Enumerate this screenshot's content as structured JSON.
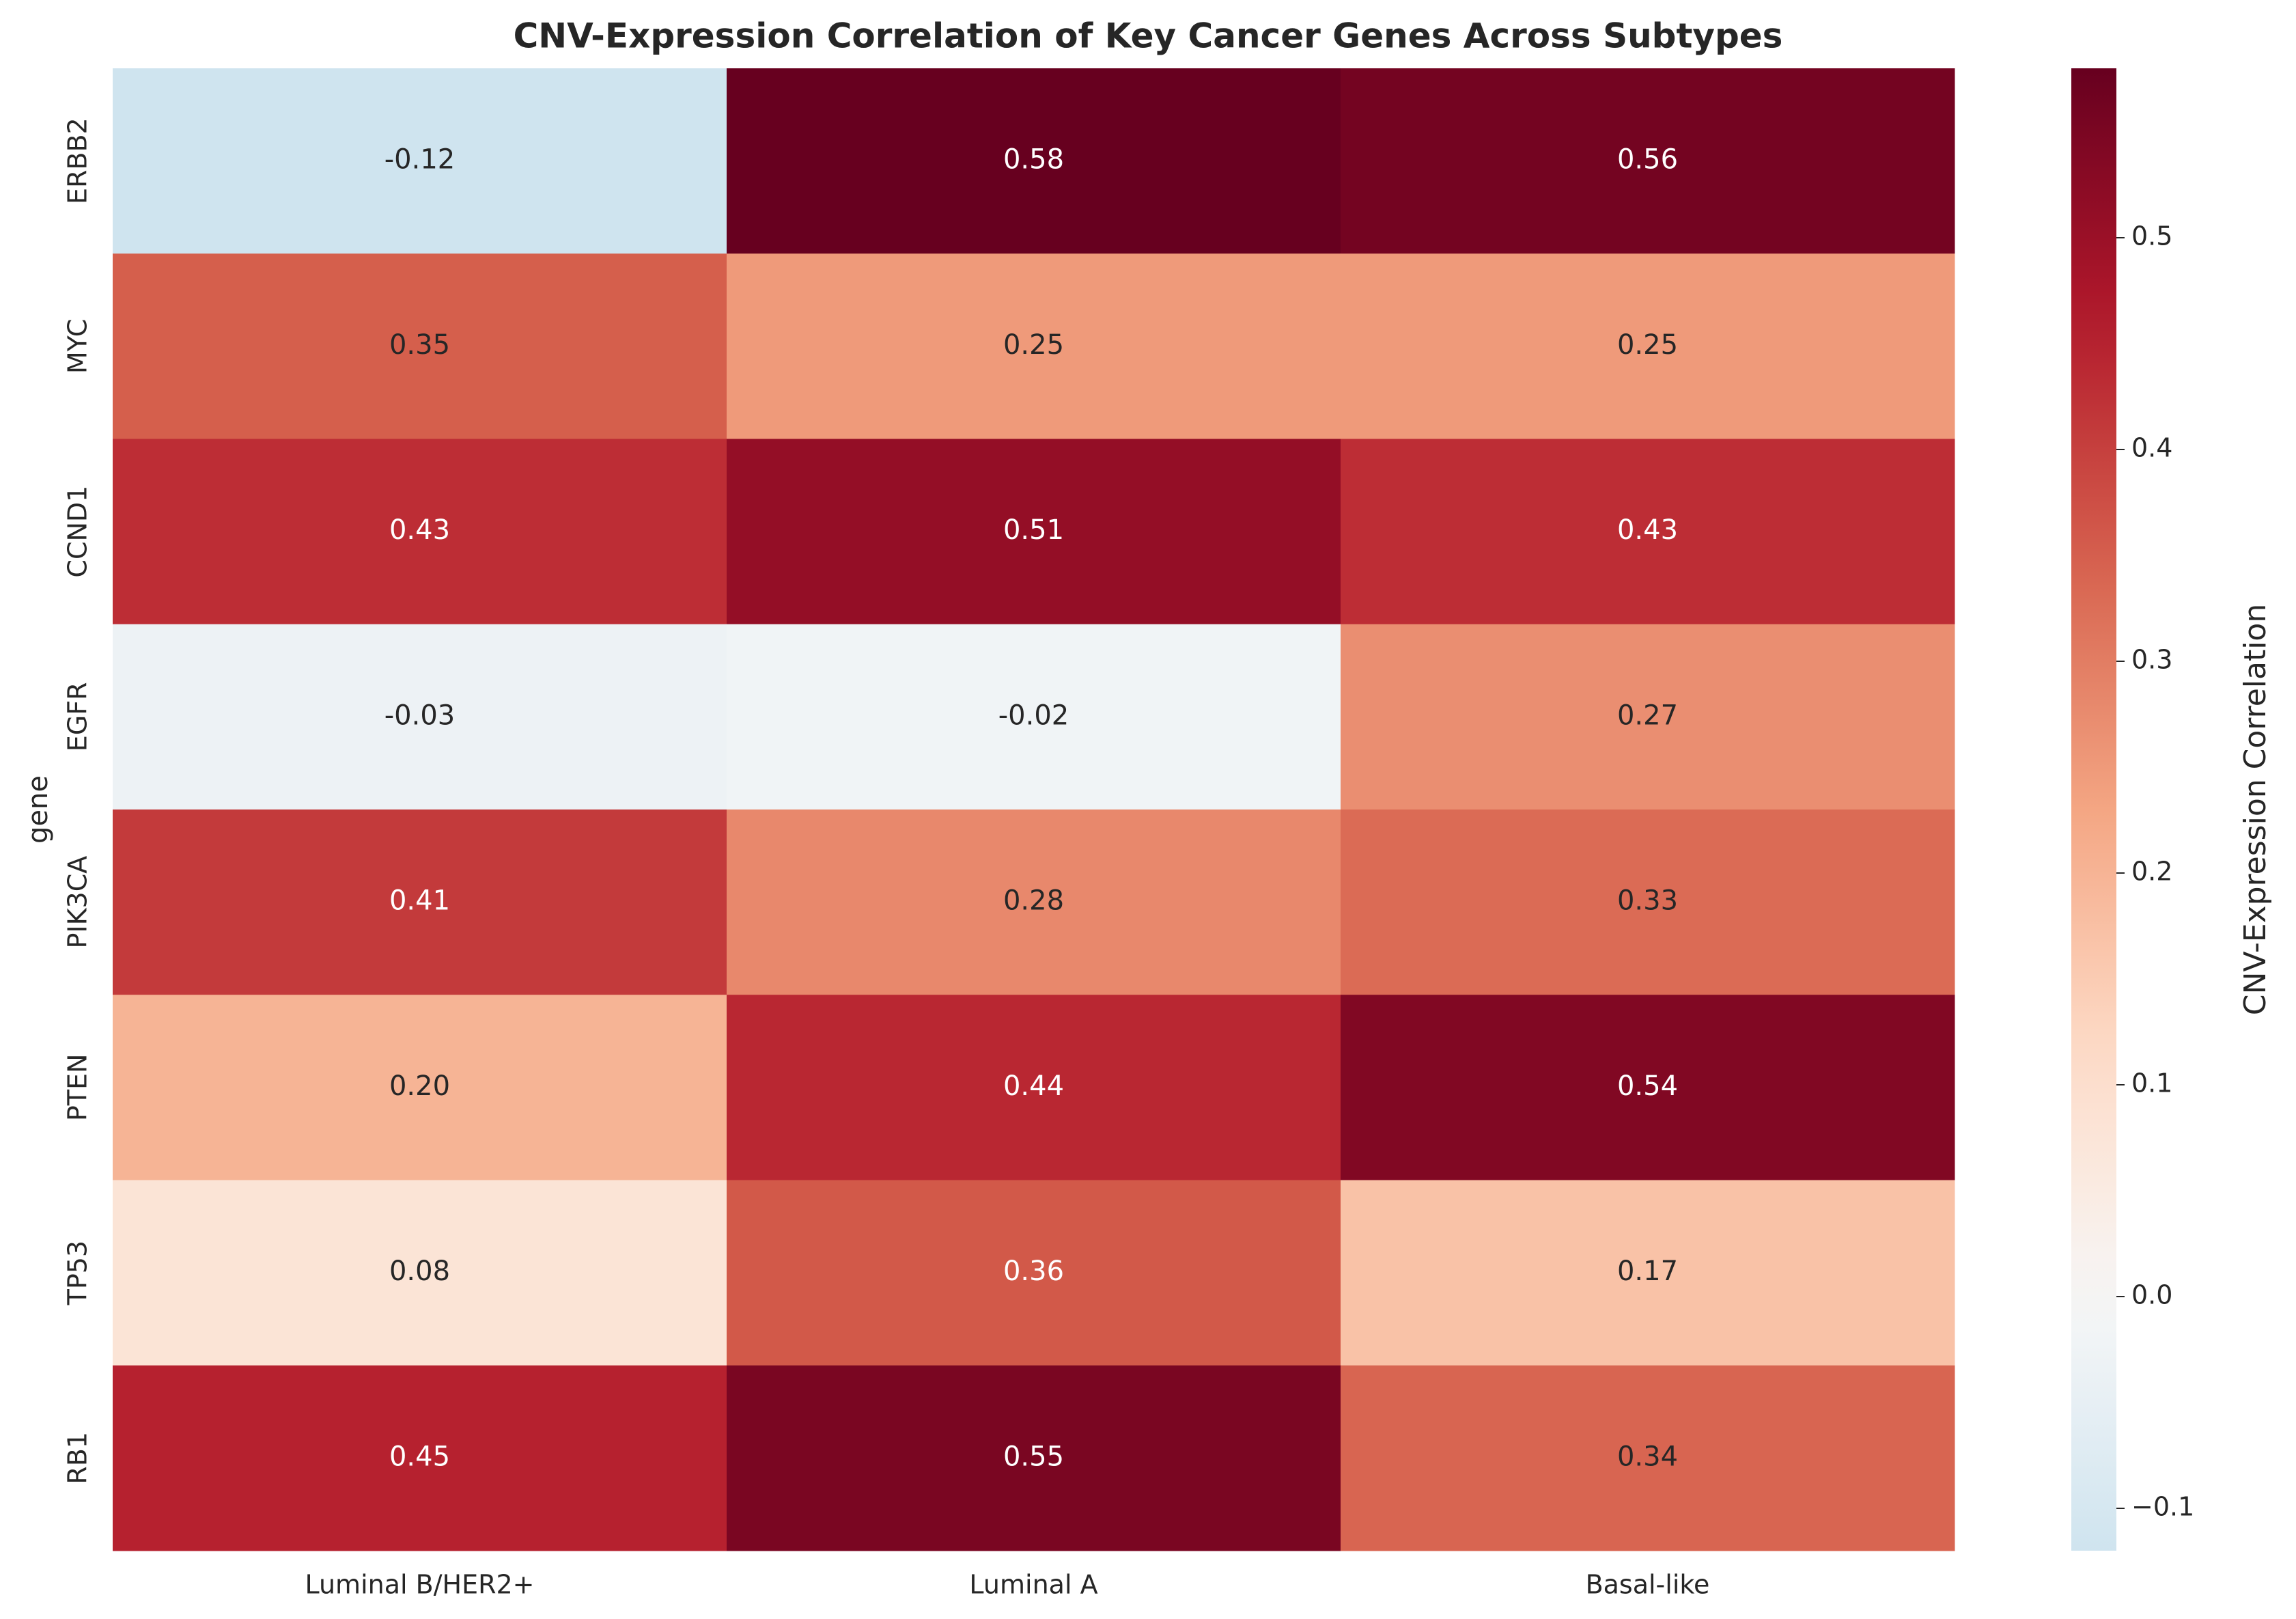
{
  "chart_data": {
    "type": "heatmap",
    "title": "CNV-Expression Correlation of Key Cancer Genes Across Subtypes",
    "xlabel": "",
    "ylabel": "gene",
    "colorbar_label": "CNV-Expression Correlation",
    "x_categories": [
      "Luminal B/HER2+",
      "Luminal A",
      "Basal-like"
    ],
    "y_categories": [
      "ERBB2",
      "MYC",
      "CCND1",
      "EGFR",
      "PIK3CA",
      "PTEN",
      "TP53",
      "RB1"
    ],
    "values": [
      [
        -0.12,
        0.58,
        0.56
      ],
      [
        0.35,
        0.25,
        0.25
      ],
      [
        0.43,
        0.51,
        0.43
      ],
      [
        -0.03,
        -0.02,
        0.27
      ],
      [
        0.41,
        0.28,
        0.33
      ],
      [
        0.2,
        0.44,
        0.54
      ],
      [
        0.08,
        0.36,
        0.17
      ],
      [
        0.45,
        0.55,
        0.34
      ]
    ],
    "value_labels": [
      [
        "-0.12",
        "0.58",
        "0.56"
      ],
      [
        "0.35",
        "0.25",
        "0.25"
      ],
      [
        "0.43",
        "0.51",
        "0.43"
      ],
      [
        "-0.03",
        "-0.02",
        "0.27"
      ],
      [
        "0.41",
        "0.28",
        "0.33"
      ],
      [
        "0.20",
        "0.44",
        "0.54"
      ],
      [
        "0.08",
        "0.36",
        "0.17"
      ],
      [
        "0.45",
        "0.55",
        "0.34"
      ]
    ],
    "colormap": "RdBu_r",
    "center": 0,
    "vmin": -0.12,
    "vmax": 0.58,
    "colorbar_ticks": [
      -0.1,
      0.0,
      0.1,
      0.2,
      0.3,
      0.4,
      0.5
    ],
    "colorbar_tick_labels": [
      "−0.1",
      "0.0",
      "0.1",
      "0.2",
      "0.3",
      "0.4",
      "0.5"
    ]
  }
}
